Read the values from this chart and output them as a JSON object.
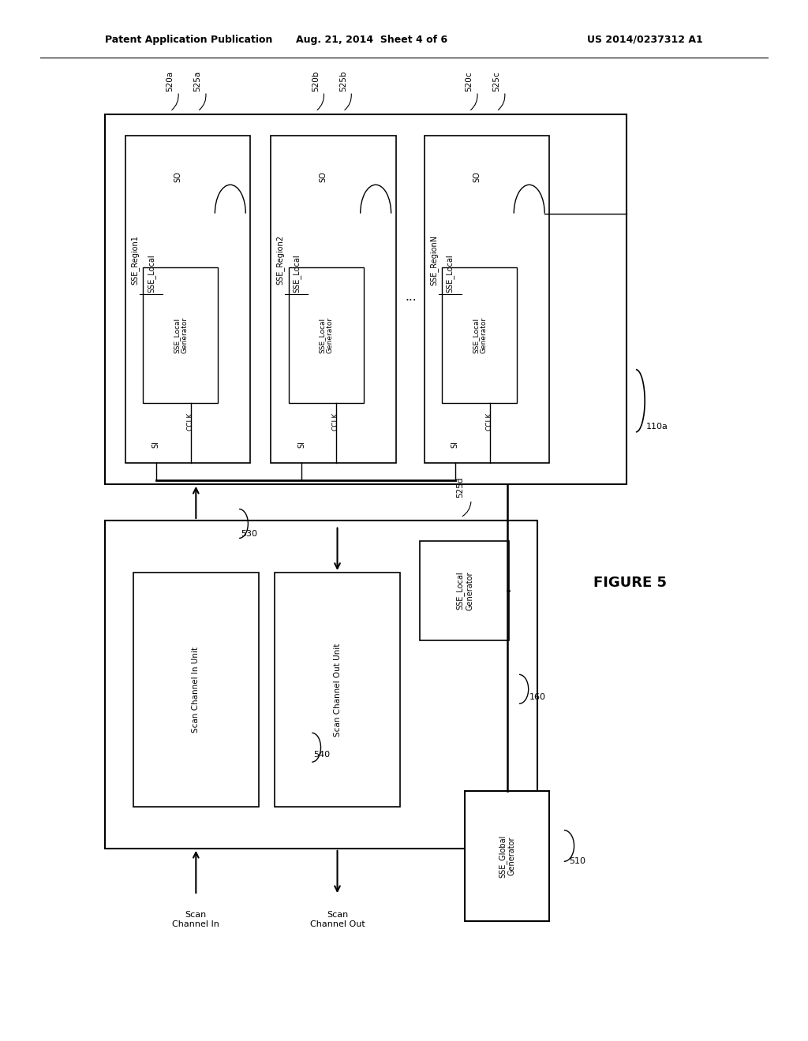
{
  "bg_color": "#ffffff",
  "header_left": "Patent Application Publication",
  "header_center": "Aug. 21, 2014  Sheet 4 of 6",
  "header_right": "US 2014/0237312 A1",
  "figure_label": "FIGURE 5"
}
